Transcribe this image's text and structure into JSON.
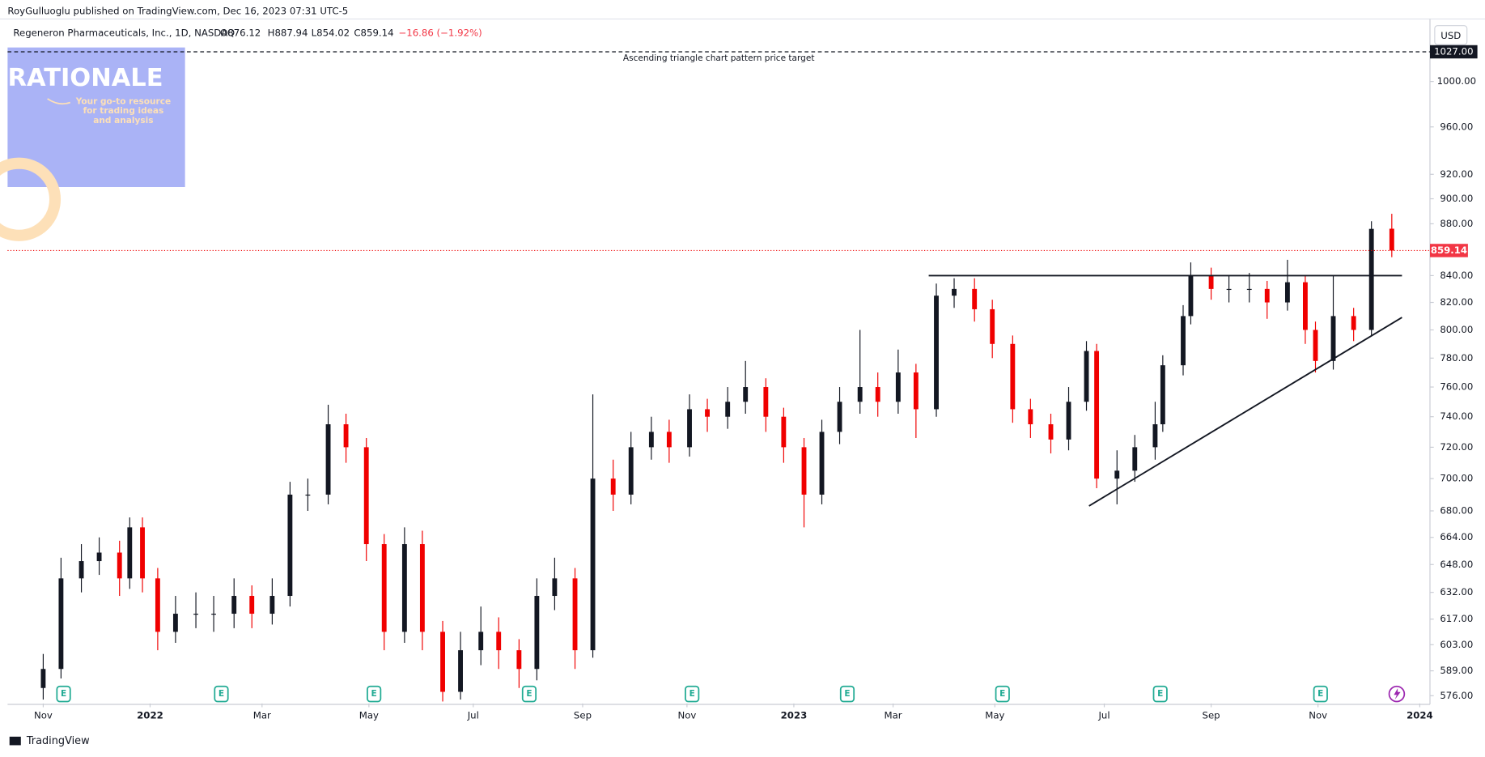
{
  "header": {
    "publisher": "RoyGulluoglu published on TradingView.com, Dec 16, 2023 07:31 UTC-5",
    "symbol": "Regeneron Pharmaceuticals, Inc., 1D, NASDAQ",
    "open": "O876.12",
    "high": "H887.94",
    "low": "L854.02",
    "close": "C859.14",
    "change": "−16.86 (−1.92%)",
    "currency": "USD"
  },
  "watermark": {
    "title": "RATIONALE",
    "tagline": [
      "Your go-to resource",
      "for trading ideas",
      "and analysis"
    ]
  },
  "footer": {
    "brand": "TradingView"
  },
  "chart_data": {
    "type": "candlestick",
    "log_scale": true,
    "up_color": "#131722",
    "down_color": "#f00000",
    "x": [
      0,
      7,
      15,
      22,
      30,
      34,
      39,
      45,
      52,
      60,
      67,
      75,
      82,
      90,
      97,
      104,
      112,
      119,
      127,
      134,
      142,
      149,
      157,
      164,
      172,
      179,
      187,
      194,
      201,
      209,
      216,
      224,
      231,
      239,
      246,
      254,
      261,
      269,
      276,
      284,
      291,
      299,
      306,
      313,
      321,
      328,
      336,
      343,
      351,
      358,
      366,
      373,
      381,
      388,
      396,
      403,
      410,
      414,
      422,
      429,
      437,
      440,
      448,
      451,
      459,
      466,
      474,
      481,
      489,
      496,
      500,
      507,
      515,
      522,
      530
    ],
    "open": [
      580,
      590,
      640,
      650,
      655,
      640,
      670,
      640,
      610,
      620,
      620,
      620,
      630,
      620,
      630,
      690,
      690,
      735,
      720,
      660,
      610,
      660,
      610,
      578,
      600,
      610,
      600,
      590,
      630,
      640,
      600,
      700,
      690,
      720,
      730,
      720,
      745,
      740,
      750,
      760,
      740,
      720,
      690,
      730,
      750,
      760,
      750,
      770,
      745,
      825,
      830,
      815,
      790,
      745,
      735,
      725,
      750,
      785,
      700,
      705,
      720,
      735,
      775,
      810,
      840,
      830,
      830,
      830,
      820,
      835,
      800,
      778,
      810,
      800,
      876.12
    ],
    "high": [
      598,
      652,
      660,
      664,
      662,
      676,
      676,
      646,
      630,
      632,
      630,
      640,
      636,
      640,
      698,
      700,
      748,
      742,
      726,
      666,
      670,
      668,
      616,
      610,
      624,
      618,
      606,
      640,
      652,
      646,
      755,
      712,
      730,
      740,
      738,
      755,
      752,
      760,
      778,
      766,
      746,
      726,
      738,
      760,
      800,
      770,
      786,
      776,
      834,
      838,
      838,
      822,
      796,
      752,
      742,
      760,
      792,
      790,
      718,
      728,
      750,
      782,
      818,
      850,
      846,
      840,
      842,
      836,
      852,
      840,
      806,
      840,
      816,
      882,
      887.94
    ],
    "low": [
      574,
      585,
      632,
      642,
      630,
      634,
      632,
      600,
      604,
      612,
      610,
      612,
      612,
      614,
      624,
      680,
      684,
      710,
      650,
      600,
      604,
      600,
      573,
      574,
      592,
      590,
      580,
      584,
      622,
      590,
      596,
      680,
      684,
      712,
      710,
      714,
      730,
      732,
      742,
      730,
      710,
      670,
      684,
      722,
      742,
      740,
      742,
      726,
      740,
      816,
      806,
      780,
      736,
      726,
      716,
      718,
      744,
      694,
      684,
      698,
      712,
      730,
      768,
      804,
      822,
      820,
      820,
      808,
      814,
      790,
      770,
      772,
      792,
      796,
      854.02
    ],
    "close": [
      590,
      640,
      650,
      655,
      640,
      670,
      640,
      610,
      620,
      620,
      620,
      630,
      620,
      630,
      690,
      690,
      735,
      720,
      660,
      610,
      660,
      610,
      578,
      600,
      610,
      600,
      590,
      630,
      640,
      600,
      700,
      690,
      720,
      730,
      720,
      745,
      740,
      750,
      760,
      740,
      720,
      690,
      730,
      750,
      760,
      750,
      770,
      745,
      825,
      830,
      815,
      790,
      745,
      735,
      725,
      750,
      785,
      700,
      705,
      720,
      735,
      775,
      810,
      840,
      830,
      830,
      830,
      820,
      835,
      800,
      778,
      810,
      800,
      876,
      859.14
    ],
    "xlim": [
      -14,
      545
    ],
    "xticks": [
      {
        "value": 0,
        "label": "Nov"
      },
      {
        "value": 42,
        "label": "2022"
      },
      {
        "value": 86,
        "label": "Mar"
      },
      {
        "value": 128,
        "label": "May"
      },
      {
        "value": 169,
        "label": "Jul"
      },
      {
        "value": 212,
        "label": "Sep"
      },
      {
        "value": 253,
        "label": "Nov"
      },
      {
        "value": 295,
        "label": "2023"
      },
      {
        "value": 334,
        "label": "Mar"
      },
      {
        "value": 374,
        "label": "May"
      },
      {
        "value": 417,
        "label": "Jul"
      },
      {
        "value": 459,
        "label": "Sep"
      },
      {
        "value": 501,
        "label": "Nov"
      },
      {
        "value": 541,
        "label": "2024"
      }
    ],
    "ylim": [
      572,
      1031
    ],
    "yticks": [
      {
        "value": 576,
        "label": "576.00"
      },
      {
        "value": 589,
        "label": "589.00"
      },
      {
        "value": 603,
        "label": "603.00"
      },
      {
        "value": 617,
        "label": "617.00"
      },
      {
        "value": 632,
        "label": "632.00"
      },
      {
        "value": 648,
        "label": "648.00"
      },
      {
        "value": 664,
        "label": "664.00"
      },
      {
        "value": 680,
        "label": "680.00"
      },
      {
        "value": 700,
        "label": "700.00"
      },
      {
        "value": 720,
        "label": "720.00"
      },
      {
        "value": 740,
        "label": "740.00"
      },
      {
        "value": 760,
        "label": "760.00"
      },
      {
        "value": 780,
        "label": "780.00"
      },
      {
        "value": 800,
        "label": "800.00"
      },
      {
        "value": 820,
        "label": "820.00"
      },
      {
        "value": 840,
        "label": "840.00"
      },
      {
        "value": 880,
        "label": "880.00"
      },
      {
        "value": 900,
        "label": "900.00"
      },
      {
        "value": 920,
        "label": "920.00"
      },
      {
        "value": 960,
        "label": "960.00"
      },
      {
        "value": 1000,
        "label": "1000.00"
      }
    ],
    "target": {
      "value": 1027,
      "label": "1027.00",
      "text": "Ascending triangle chart pattern price target"
    },
    "resistance": {
      "x": [
        348,
        534
      ],
      "y": [
        840,
        840
      ]
    },
    "support": {
      "x": [
        411,
        534
      ],
      "y": [
        683,
        809
      ]
    },
    "earnings": {
      "label": "E",
      "x": [
        8,
        70,
        130,
        191,
        255,
        316,
        377,
        439,
        502
      ]
    }
  }
}
